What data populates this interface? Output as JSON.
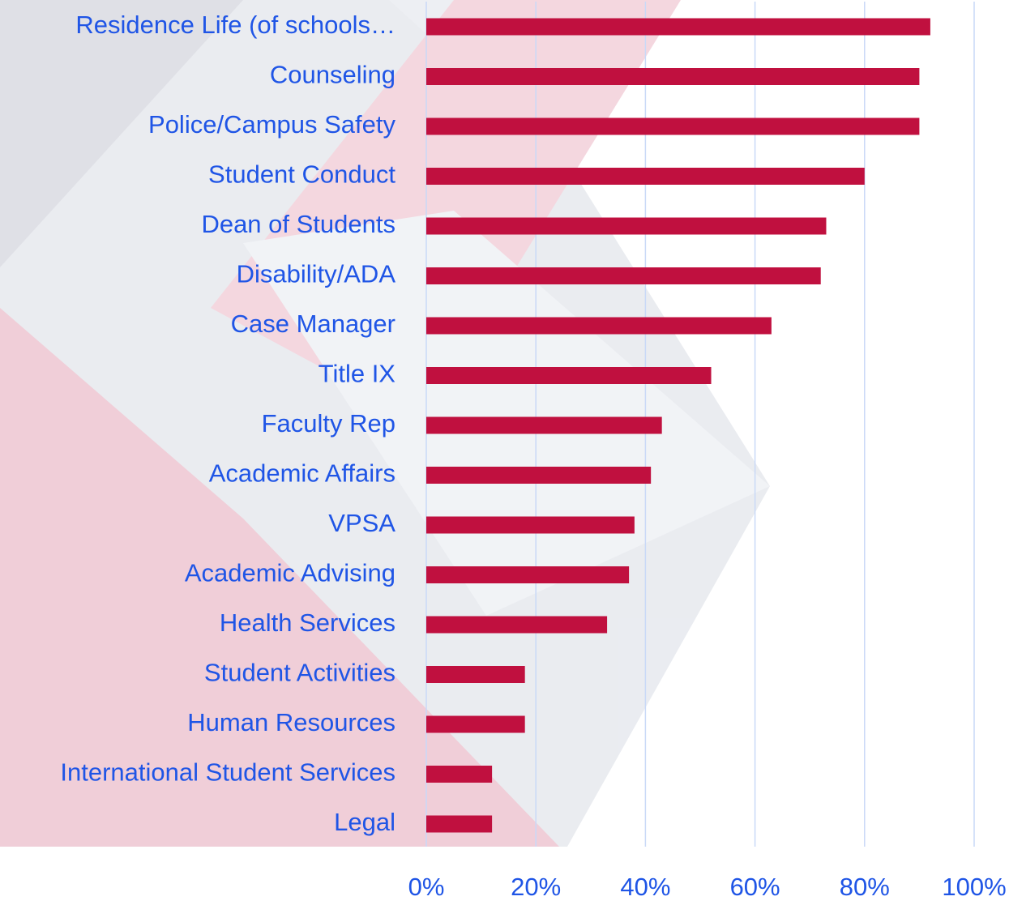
{
  "chart_data": {
    "type": "barh",
    "categories": [
      "Residence Life (of schools…",
      "Counseling",
      "Police/Campus Safety",
      "Student Conduct",
      "Dean of Students",
      "Disability/ADA",
      "Case Manager",
      "Title IX",
      "Faculty Rep",
      "Academic Affairs",
      "VPSA",
      "Academic Advising",
      "Health Services",
      "Student Activities",
      "Human Resources",
      "International Student Services",
      "Legal"
    ],
    "values": [
      92,
      90,
      90,
      80,
      73,
      72,
      63,
      52,
      43,
      41,
      38,
      37,
      33,
      18,
      18,
      12,
      12
    ],
    "color": "#c0103f",
    "xlim": [
      0,
      100
    ],
    "xticks": [
      {
        "value": 0,
        "label": "0%"
      },
      {
        "value": 20,
        "label": "20%"
      },
      {
        "value": 40,
        "label": "40%"
      },
      {
        "value": 60,
        "label": "60%"
      },
      {
        "value": 80,
        "label": "80%"
      },
      {
        "value": 100,
        "label": "100%"
      }
    ],
    "grid": true
  }
}
